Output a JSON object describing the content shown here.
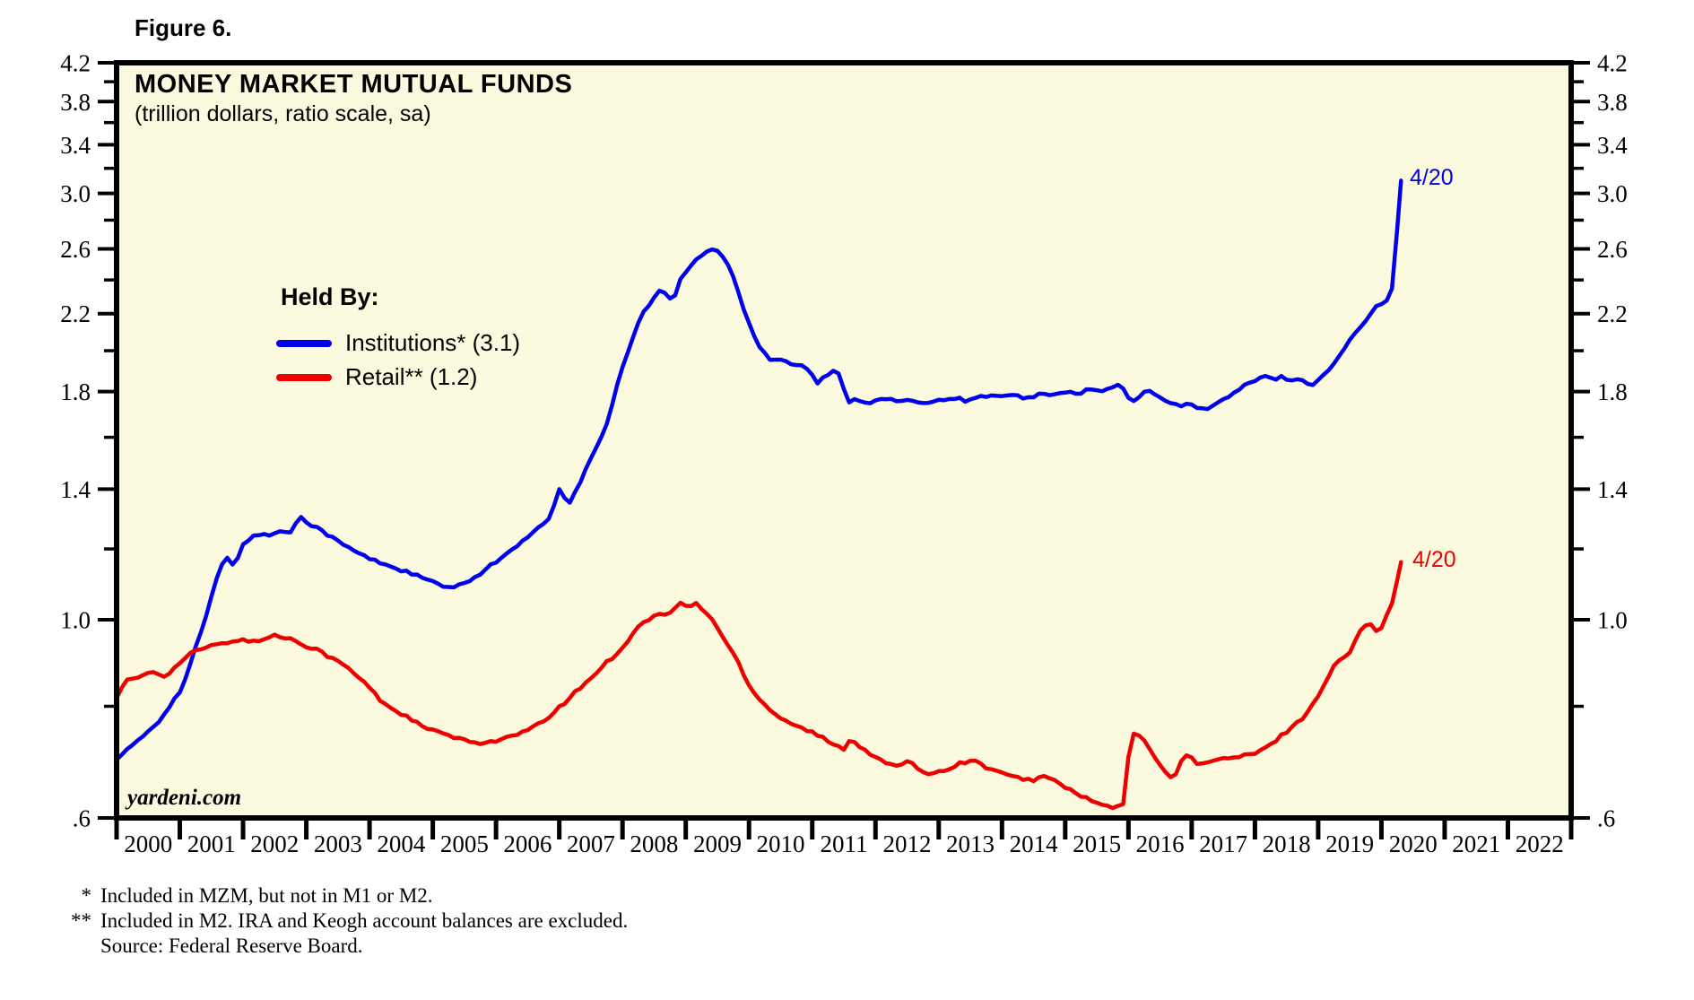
{
  "figure_label": "Figure 6.",
  "header": {
    "title": "MONEY MARKET MUTUAL FUNDS",
    "subtitle": "(trillion dollars, ratio scale, sa)"
  },
  "watermark": "yardeni.com",
  "legend": {
    "heading": "Held By:",
    "entries": [
      {
        "label": "Institutions* (3.1)",
        "color": "#0000EE"
      },
      {
        "label": "Retail** (1.2)",
        "color": "#EE0000"
      }
    ]
  },
  "footnotes": [
    {
      "marker": "*",
      "text": "Included in MZM, but not in M1 or M2."
    },
    {
      "marker": "**",
      "text": "Included in M2. IRA and Keogh account balances are excluded."
    },
    {
      "marker": "",
      "text": "Source: Federal Reserve Board."
    }
  ],
  "colors": {
    "background": "#FBFADF",
    "axis": "#000000",
    "institutions": "#0000EE",
    "retail": "#EE0000"
  },
  "chart_data": {
    "type": "line",
    "title": "MONEY MARKET MUTUAL FUNDS",
    "subtitle": "(trillion dollars, ratio scale, sa)",
    "y_scale": "log",
    "ylim": [
      0.6,
      4.2
    ],
    "xlim": [
      2000,
      2023
    ],
    "grid": false,
    "legend_position": "inside-upper-left",
    "y_axis": {
      "major_ticks": [
        {
          "value": 4.2,
          "label": "4.2"
        },
        {
          "value": 3.8,
          "label": "3.8"
        },
        {
          "value": 3.4,
          "label": "3.4"
        },
        {
          "value": 3.0,
          "label": "3.0"
        },
        {
          "value": 2.6,
          "label": "2.6"
        },
        {
          "value": 2.2,
          "label": "2.2"
        },
        {
          "value": 1.8,
          "label": "1.8"
        },
        {
          "value": 1.4,
          "label": "1.4"
        },
        {
          "value": 1.0,
          "label": "1.0"
        },
        {
          "value": 0.6,
          "label": ".6"
        }
      ],
      "minor_ticks": [
        4.0,
        3.6,
        3.2,
        2.8,
        2.4,
        2.0,
        1.6,
        1.2,
        0.8
      ]
    },
    "x_axis": {
      "year_labels": [
        "2000",
        "2001",
        "2002",
        "2003",
        "2004",
        "2005",
        "2006",
        "2007",
        "2008",
        "2009",
        "2010",
        "2011",
        "2012",
        "2013",
        "2014",
        "2015",
        "2016",
        "2017",
        "2018",
        "2019",
        "2020",
        "2021",
        "2022"
      ],
      "boundary_ticks": [
        2000,
        2001,
        2002,
        2003,
        2004,
        2005,
        2006,
        2007,
        2008,
        2009,
        2010,
        2011,
        2012,
        2013,
        2014,
        2015,
        2016,
        2017,
        2018,
        2019,
        2020,
        2021,
        2022,
        2023
      ]
    },
    "series": [
      {
        "name": "Institutions*",
        "color": "#0000EE",
        "end_label": "4/20",
        "end_value": 3.1,
        "points": [
          [
            2000.0,
            0.7
          ],
          [
            2000.17,
            0.715
          ],
          [
            2000.33,
            0.73
          ],
          [
            2000.5,
            0.75
          ],
          [
            2000.67,
            0.77
          ],
          [
            2000.83,
            0.8
          ],
          [
            2001.0,
            0.83
          ],
          [
            2001.12,
            0.87
          ],
          [
            2001.25,
            0.93
          ],
          [
            2001.4,
            1.0
          ],
          [
            2001.5,
            1.06
          ],
          [
            2001.63,
            1.14
          ],
          [
            2001.75,
            1.175
          ],
          [
            2001.85,
            1.15
          ],
          [
            2002.0,
            1.21
          ],
          [
            2002.15,
            1.24
          ],
          [
            2002.3,
            1.25
          ],
          [
            2002.45,
            1.24
          ],
          [
            2002.6,
            1.26
          ],
          [
            2002.75,
            1.25
          ],
          [
            2002.9,
            1.31
          ],
          [
            2003.05,
            1.28
          ],
          [
            2003.2,
            1.265
          ],
          [
            2003.45,
            1.23
          ],
          [
            2003.7,
            1.2
          ],
          [
            2004.0,
            1.17
          ],
          [
            2004.3,
            1.15
          ],
          [
            2004.6,
            1.13
          ],
          [
            2004.9,
            1.11
          ],
          [
            2005.2,
            1.085
          ],
          [
            2005.5,
            1.095
          ],
          [
            2005.7,
            1.12
          ],
          [
            2005.9,
            1.15
          ],
          [
            2006.15,
            1.18
          ],
          [
            2006.4,
            1.22
          ],
          [
            2006.65,
            1.26
          ],
          [
            2006.88,
            1.31
          ],
          [
            2006.98,
            1.4
          ],
          [
            2007.1,
            1.37
          ],
          [
            2007.18,
            1.35
          ],
          [
            2007.28,
            1.4
          ],
          [
            2007.45,
            1.49
          ],
          [
            2007.6,
            1.57
          ],
          [
            2007.75,
            1.65
          ],
          [
            2007.9,
            1.82
          ],
          [
            2008.0,
            1.92
          ],
          [
            2008.15,
            2.06
          ],
          [
            2008.3,
            2.19
          ],
          [
            2008.45,
            2.27
          ],
          [
            2008.6,
            2.34
          ],
          [
            2008.72,
            2.3
          ],
          [
            2008.8,
            2.27
          ],
          [
            2008.9,
            2.39
          ],
          [
            2009.0,
            2.45
          ],
          [
            2009.15,
            2.52
          ],
          [
            2009.3,
            2.58
          ],
          [
            2009.45,
            2.6
          ],
          [
            2009.55,
            2.57
          ],
          [
            2009.7,
            2.48
          ],
          [
            2009.85,
            2.3
          ],
          [
            2010.0,
            2.15
          ],
          [
            2010.15,
            2.03
          ],
          [
            2010.35,
            1.95
          ],
          [
            2010.5,
            1.96
          ],
          [
            2010.7,
            1.93
          ],
          [
            2010.9,
            1.92
          ],
          [
            2011.08,
            1.84
          ],
          [
            2011.25,
            1.88
          ],
          [
            2011.36,
            1.9
          ],
          [
            2011.45,
            1.87
          ],
          [
            2011.57,
            1.75
          ],
          [
            2011.7,
            1.77
          ],
          [
            2011.85,
            1.75
          ],
          [
            2012.0,
            1.755
          ],
          [
            2012.2,
            1.77
          ],
          [
            2012.4,
            1.75
          ],
          [
            2012.6,
            1.76
          ],
          [
            2012.8,
            1.75
          ],
          [
            2013.0,
            1.76
          ],
          [
            2013.2,
            1.775
          ],
          [
            2013.4,
            1.76
          ],
          [
            2013.6,
            1.77
          ],
          [
            2013.8,
            1.785
          ],
          [
            2014.0,
            1.775
          ],
          [
            2014.2,
            1.78
          ],
          [
            2014.4,
            1.77
          ],
          [
            2014.6,
            1.79
          ],
          [
            2014.8,
            1.78
          ],
          [
            2015.0,
            1.8
          ],
          [
            2015.2,
            1.79
          ],
          [
            2015.4,
            1.81
          ],
          [
            2015.6,
            1.8
          ],
          [
            2015.75,
            1.82
          ],
          [
            2015.9,
            1.83
          ],
          [
            2016.05,
            1.74
          ],
          [
            2016.2,
            1.79
          ],
          [
            2016.35,
            1.8
          ],
          [
            2016.5,
            1.78
          ],
          [
            2016.65,
            1.75
          ],
          [
            2016.8,
            1.73
          ],
          [
            2016.95,
            1.745
          ],
          [
            2017.1,
            1.73
          ],
          [
            2017.25,
            1.72
          ],
          [
            2017.4,
            1.745
          ],
          [
            2017.55,
            1.77
          ],
          [
            2017.7,
            1.8
          ],
          [
            2017.85,
            1.83
          ],
          [
            2018.0,
            1.85
          ],
          [
            2018.15,
            1.87
          ],
          [
            2018.3,
            1.86
          ],
          [
            2018.45,
            1.87
          ],
          [
            2018.6,
            1.85
          ],
          [
            2018.75,
            1.86
          ],
          [
            2018.9,
            1.82
          ],
          [
            2019.0,
            1.86
          ],
          [
            2019.15,
            1.9
          ],
          [
            2019.3,
            1.95
          ],
          [
            2019.5,
            2.06
          ],
          [
            2019.65,
            2.11
          ],
          [
            2019.75,
            2.16
          ],
          [
            2019.9,
            2.25
          ],
          [
            2020.05,
            2.27
          ],
          [
            2020.15,
            2.29
          ],
          [
            2020.23,
            2.62
          ],
          [
            2020.31,
            3.1
          ]
        ]
      },
      {
        "name": "Retail**",
        "color": "#EE0000",
        "end_label": "4/20",
        "end_value": 1.2,
        "points": [
          [
            2000.0,
            0.82
          ],
          [
            2000.1,
            0.845
          ],
          [
            2000.2,
            0.86
          ],
          [
            2000.3,
            0.855
          ],
          [
            2000.45,
            0.87
          ],
          [
            2000.6,
            0.875
          ],
          [
            2000.75,
            0.865
          ],
          [
            2000.9,
            0.88
          ],
          [
            2001.0,
            0.895
          ],
          [
            2001.15,
            0.915
          ],
          [
            2001.3,
            0.925
          ],
          [
            2001.5,
            0.935
          ],
          [
            2001.7,
            0.94
          ],
          [
            2001.9,
            0.95
          ],
          [
            2002.1,
            0.945
          ],
          [
            2002.3,
            0.95
          ],
          [
            2002.5,
            0.96
          ],
          [
            2002.65,
            0.955
          ],
          [
            2002.8,
            0.95
          ],
          [
            2003.0,
            0.935
          ],
          [
            2003.2,
            0.925
          ],
          [
            2003.4,
            0.905
          ],
          [
            2003.6,
            0.89
          ],
          [
            2003.8,
            0.865
          ],
          [
            2004.0,
            0.84
          ],
          [
            2004.15,
            0.815
          ],
          [
            2004.3,
            0.8
          ],
          [
            2004.5,
            0.785
          ],
          [
            2004.7,
            0.77
          ],
          [
            2004.9,
            0.755
          ],
          [
            2005.1,
            0.748
          ],
          [
            2005.3,
            0.74
          ],
          [
            2005.5,
            0.732
          ],
          [
            2005.7,
            0.728
          ],
          [
            2005.9,
            0.73
          ],
          [
            2006.1,
            0.735
          ],
          [
            2006.3,
            0.742
          ],
          [
            2006.5,
            0.752
          ],
          [
            2006.7,
            0.765
          ],
          [
            2006.9,
            0.785
          ],
          [
            2007.1,
            0.81
          ],
          [
            2007.3,
            0.835
          ],
          [
            2007.5,
            0.86
          ],
          [
            2007.7,
            0.89
          ],
          [
            2007.9,
            0.915
          ],
          [
            2008.05,
            0.94
          ],
          [
            2008.2,
            0.975
          ],
          [
            2008.4,
            1.0
          ],
          [
            2008.55,
            1.015
          ],
          [
            2008.7,
            1.01
          ],
          [
            2008.85,
            1.035
          ],
          [
            2008.95,
            1.045
          ],
          [
            2009.05,
            1.03
          ],
          [
            2009.15,
            1.045
          ],
          [
            2009.25,
            1.03
          ],
          [
            2009.4,
            1.005
          ],
          [
            2009.55,
            0.965
          ],
          [
            2009.7,
            0.93
          ],
          [
            2009.85,
            0.89
          ],
          [
            2010.0,
            0.845
          ],
          [
            2010.2,
            0.81
          ],
          [
            2010.4,
            0.785
          ],
          [
            2010.6,
            0.77
          ],
          [
            2010.8,
            0.758
          ],
          [
            2011.0,
            0.748
          ],
          [
            2011.2,
            0.735
          ],
          [
            2011.35,
            0.722
          ],
          [
            2011.5,
            0.718
          ],
          [
            2011.6,
            0.735
          ],
          [
            2011.72,
            0.725
          ],
          [
            2011.85,
            0.715
          ],
          [
            2012.0,
            0.7
          ],
          [
            2012.2,
            0.69
          ],
          [
            2012.4,
            0.685
          ],
          [
            2012.55,
            0.695
          ],
          [
            2012.7,
            0.68
          ],
          [
            2012.85,
            0.672
          ],
          [
            2013.0,
            0.676
          ],
          [
            2013.2,
            0.684
          ],
          [
            2013.4,
            0.693
          ],
          [
            2013.55,
            0.697
          ],
          [
            2013.7,
            0.686
          ],
          [
            2013.9,
            0.678
          ],
          [
            2014.1,
            0.668
          ],
          [
            2014.3,
            0.664
          ],
          [
            2014.5,
            0.662
          ],
          [
            2014.65,
            0.668
          ],
          [
            2014.8,
            0.662
          ],
          [
            2015.0,
            0.65
          ],
          [
            2015.2,
            0.638
          ],
          [
            2015.4,
            0.627
          ],
          [
            2015.6,
            0.62
          ],
          [
            2015.8,
            0.614
          ],
          [
            2015.97,
            0.628
          ],
          [
            2016.02,
            0.755
          ],
          [
            2016.1,
            0.74
          ],
          [
            2016.18,
            0.745
          ],
          [
            2016.3,
            0.72
          ],
          [
            2016.45,
            0.698
          ],
          [
            2016.6,
            0.675
          ],
          [
            2016.72,
            0.66
          ],
          [
            2016.85,
            0.7
          ],
          [
            2016.95,
            0.706
          ],
          [
            2017.1,
            0.69
          ],
          [
            2017.25,
            0.692
          ],
          [
            2017.4,
            0.696
          ],
          [
            2017.55,
            0.7
          ],
          [
            2017.7,
            0.701
          ],
          [
            2017.85,
            0.705
          ],
          [
            2018.0,
            0.708
          ],
          [
            2018.15,
            0.716
          ],
          [
            2018.3,
            0.73
          ],
          [
            2018.45,
            0.745
          ],
          [
            2018.6,
            0.76
          ],
          [
            2018.75,
            0.776
          ],
          [
            2018.9,
            0.8
          ],
          [
            2019.05,
            0.835
          ],
          [
            2019.25,
            0.888
          ],
          [
            2019.5,
            0.92
          ],
          [
            2019.7,
            0.98
          ],
          [
            2019.82,
            0.995
          ],
          [
            2019.93,
            0.972
          ],
          [
            2020.02,
            0.985
          ],
          [
            2020.1,
            1.02
          ],
          [
            2020.2,
            1.06
          ],
          [
            2020.31,
            1.16
          ]
        ]
      }
    ]
  }
}
